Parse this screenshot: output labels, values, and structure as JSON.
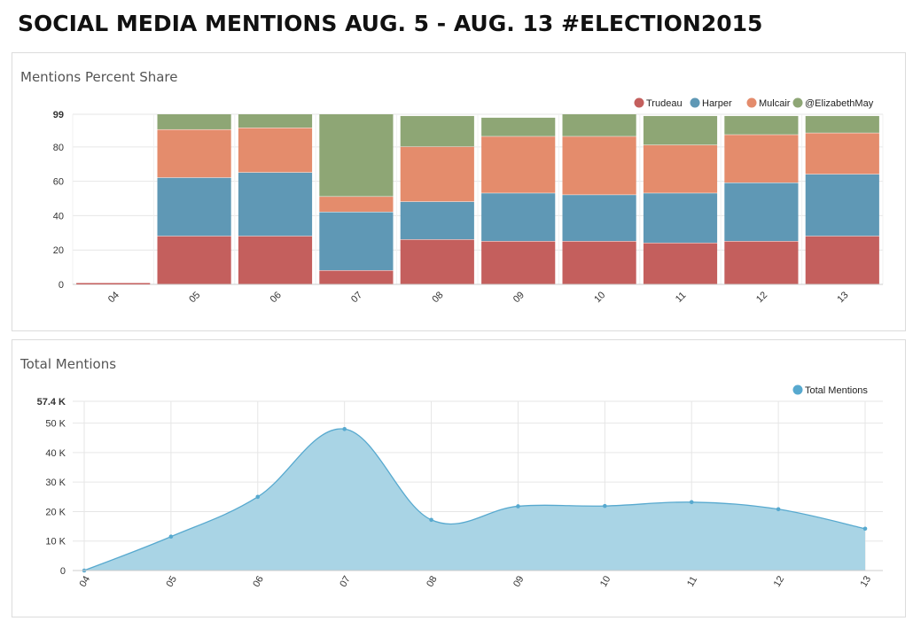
{
  "page": {
    "title": "SOCIAL MEDIA MENTIONS AUG. 5 - AUG. 13 #ELECTION2015"
  },
  "colors": {
    "Trudeau": "#c45f5d",
    "Harper": "#5f98b5",
    "Mulcair": "#e48c6c",
    "@ElizabethMay": "#8ea675",
    "Total Mentions": "#57a9cf",
    "area_fill": "#a9d4e5",
    "grid": "#e6e6e6"
  },
  "chart_data": [
    {
      "type": "bar",
      "stacked": true,
      "title": "Mentions Percent Share",
      "legend_position": "top-right",
      "categories": [
        "04",
        "05",
        "06",
        "07",
        "08",
        "09",
        "10",
        "11",
        "12",
        "13"
      ],
      "ylim": [
        0,
        99
      ],
      "yticks": [
        0,
        20,
        40,
        60,
        80,
        99
      ],
      "ytick_labels": [
        "0",
        "20",
        "40",
        "60",
        "80",
        "99"
      ],
      "grid": true,
      "series": [
        {
          "name": "Trudeau",
          "values": [
            0,
            28,
            28,
            8,
            26,
            25,
            25,
            24,
            25,
            28
          ]
        },
        {
          "name": "Harper",
          "values": [
            0,
            34,
            37,
            34,
            22,
            28,
            27,
            29,
            34,
            36
          ]
        },
        {
          "name": "Mulcair",
          "values": [
            0,
            28,
            26,
            9,
            32,
            33,
            34,
            28,
            28,
            24
          ]
        },
        {
          "name": "@ElizabethMay",
          "values": [
            0,
            9,
            8,
            48,
            18,
            11,
            13,
            17,
            11,
            10
          ]
        }
      ]
    },
    {
      "type": "area",
      "title": "Total Mentions",
      "legend_position": "top-right",
      "categories": [
        "04",
        "05",
        "06",
        "07",
        "08",
        "09",
        "10",
        "11",
        "12",
        "13"
      ],
      "ylim": [
        0,
        57400
      ],
      "yticks": [
        0,
        10000,
        20000,
        30000,
        40000,
        50000,
        57400
      ],
      "ytick_labels": [
        "0",
        "10 K",
        "20 K",
        "30 K",
        "40 K",
        "50 K",
        "57.4 K"
      ],
      "grid": true,
      "series": [
        {
          "name": "Total Mentions",
          "values": [
            0,
            11500,
            25000,
            48000,
            17200,
            21800,
            21900,
            23200,
            20800,
            14200
          ]
        }
      ]
    }
  ]
}
